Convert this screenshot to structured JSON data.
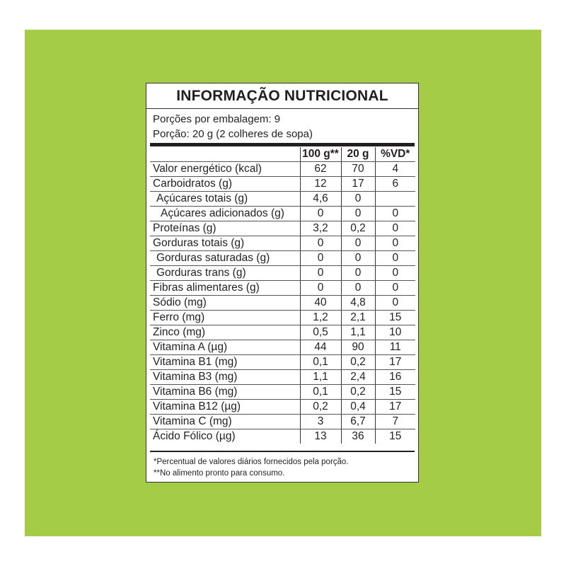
{
  "background_color": "#a4cc46",
  "title": "INFORMAÇÃO NUTRICIONAL",
  "servings_per_package": "Porções por embalagem: 9",
  "serving_size": "Porção: 20 g (2 colheres de sopa)",
  "columns": [
    "",
    "100 g**",
    "20 g",
    "%VD*"
  ],
  "rows": [
    {
      "label": "Valor energético (kcal)",
      "indent": 0,
      "v100": "62",
      "v20": "70",
      "vd": "4"
    },
    {
      "label": "Carboidratos (g)",
      "indent": 0,
      "v100": "12",
      "v20": "17",
      "vd": "6"
    },
    {
      "label": "Açúcares totais (g)",
      "indent": 1,
      "v100": "4,6",
      "v20": "0",
      "vd": ""
    },
    {
      "label": "Açúcares adicionados (g)",
      "indent": 2,
      "v100": "0",
      "v20": "0",
      "vd": "0"
    },
    {
      "label": "Proteínas (g)",
      "indent": 0,
      "v100": "3,2",
      "v20": "0,2",
      "vd": "0"
    },
    {
      "label": "Gorduras totais (g)",
      "indent": 0,
      "v100": "0",
      "v20": "0",
      "vd": "0"
    },
    {
      "label": "Gorduras saturadas (g)",
      "indent": 1,
      "v100": "0",
      "v20": "0",
      "vd": "0"
    },
    {
      "label": "Gorduras trans (g)",
      "indent": 1,
      "v100": "0",
      "v20": "0",
      "vd": "0"
    },
    {
      "label": "Fibras alimentares (g)",
      "indent": 0,
      "v100": "0",
      "v20": "0",
      "vd": "0"
    },
    {
      "label": "Sódio (mg)",
      "indent": 0,
      "v100": "40",
      "v20": "4,8",
      "vd": "0"
    },
    {
      "label": "Ferro (mg)",
      "indent": 0,
      "v100": "1,2",
      "v20": "2,1",
      "vd": "15"
    },
    {
      "label": "Zinco (mg)",
      "indent": 0,
      "v100": "0,5",
      "v20": "1,1",
      "vd": "10"
    },
    {
      "label": "Vitamina A (µg)",
      "indent": 0,
      "v100": "44",
      "v20": "90",
      "vd": "11"
    },
    {
      "label": "Vitamina B1 (mg)",
      "indent": 0,
      "v100": "0,1",
      "v20": "0,2",
      "vd": "17"
    },
    {
      "label": "Vitamina B3 (mg)",
      "indent": 0,
      "v100": "1,1",
      "v20": "2,4",
      "vd": "16"
    },
    {
      "label": "Vitamina B6 (mg)",
      "indent": 0,
      "v100": "0,1",
      "v20": "0,2",
      "vd": "15"
    },
    {
      "label": "Vitamina B12 (µg)",
      "indent": 0,
      "v100": "0,2",
      "v20": "0,4",
      "vd": "17"
    },
    {
      "label": "Vitamina C (mg)",
      "indent": 0,
      "v100": "3",
      "v20": "6,7",
      "vd": "7"
    },
    {
      "label": "Ácido Fólico (µg)",
      "indent": 0,
      "v100": "13",
      "v20": "36",
      "vd": "15"
    }
  ],
  "footnotes": [
    "*Percentual de valores diários fornecidos pela porção.",
    "**No alimento pronto para consumo."
  ]
}
